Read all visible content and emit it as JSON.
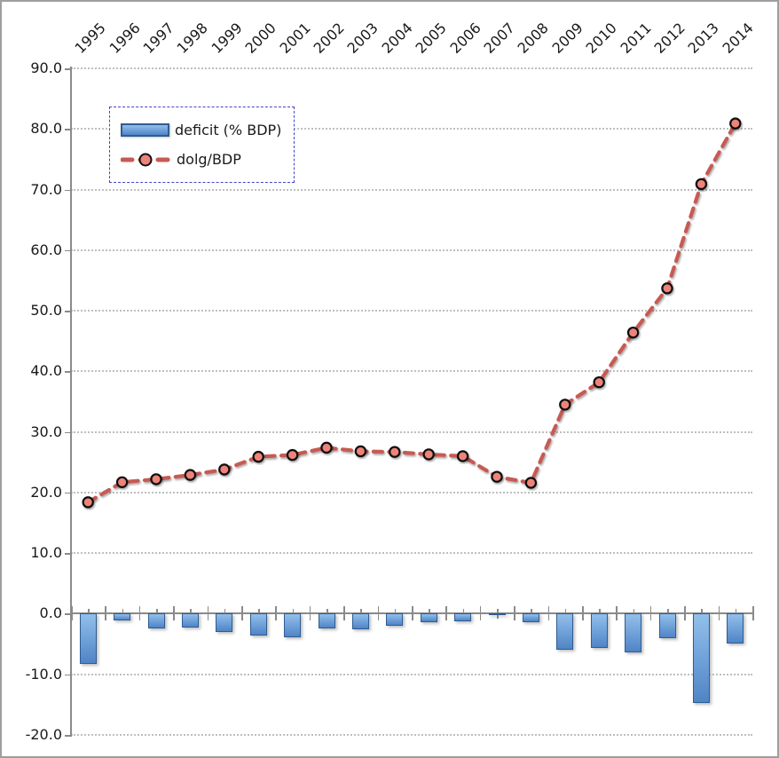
{
  "chart_data": {
    "type": "bar",
    "subtype": "combo-bar-line",
    "title": "",
    "xlabel": "",
    "ylabel": "",
    "categories": [
      "1995",
      "1996",
      "1997",
      "1998",
      "1999",
      "2000",
      "2001",
      "2002",
      "2003",
      "2004",
      "2005",
      "2006",
      "2007",
      "2008",
      "2009",
      "2010",
      "2011",
      "2012",
      "2013",
      "2014"
    ],
    "series": [
      {
        "name": "deficit (% BDP)",
        "type": "bar",
        "values": [
          -8.3,
          -1.1,
          -2.4,
          -2.3,
          -3.0,
          -3.6,
          -3.9,
          -2.4,
          -2.6,
          -2.0,
          -1.4,
          -1.3,
          -0.1,
          -1.4,
          -5.9,
          -5.6,
          -6.4,
          -4.0,
          -14.7,
          -4.9
        ]
      },
      {
        "name": "dolg/BDP",
        "type": "line-dashed-markers",
        "values": [
          18.4,
          21.7,
          22.2,
          22.9,
          23.8,
          25.9,
          26.2,
          27.4,
          26.8,
          26.7,
          26.3,
          26.0,
          22.6,
          21.6,
          34.5,
          38.2,
          46.4,
          53.7,
          70.9,
          80.9
        ]
      }
    ],
    "ylim": [
      -20,
      90
    ],
    "yticks": [
      90,
      80,
      70,
      60,
      50,
      40,
      30,
      20,
      10,
      0,
      -10,
      -20
    ],
    "ytick_labels": [
      "90.0",
      "80.0",
      "70.0",
      "60.0",
      "50.0",
      "40.0",
      "30.0",
      "20.0",
      "10.0",
      "0.0",
      "-10.0",
      "-20.0"
    ],
    "grid": "horizontal-dotted",
    "x_axis_position": "top-labels-rotated-45",
    "legend_position": "upper-left-inside"
  },
  "legend": {
    "items": [
      {
        "label": "deficit (% BDP)",
        "swatch": "blue-bar"
      },
      {
        "label": "dolg/BDP",
        "swatch": "red-dashed-circle-marker"
      }
    ]
  },
  "colors": {
    "bar-light": "#93bfea",
    "bar-mid": "#6d9fd8",
    "bar-dark": "#5084c4",
    "bar-border": "#2e5d92",
    "line-color": "#c75a52",
    "marker-fill": "#ee8379",
    "marker-stroke": "#111111",
    "grid-color": "#b5b5b5",
    "axis-color": "#8a8a8a",
    "text-color": "#1a1a1a",
    "legend-border": "#4444cb"
  }
}
